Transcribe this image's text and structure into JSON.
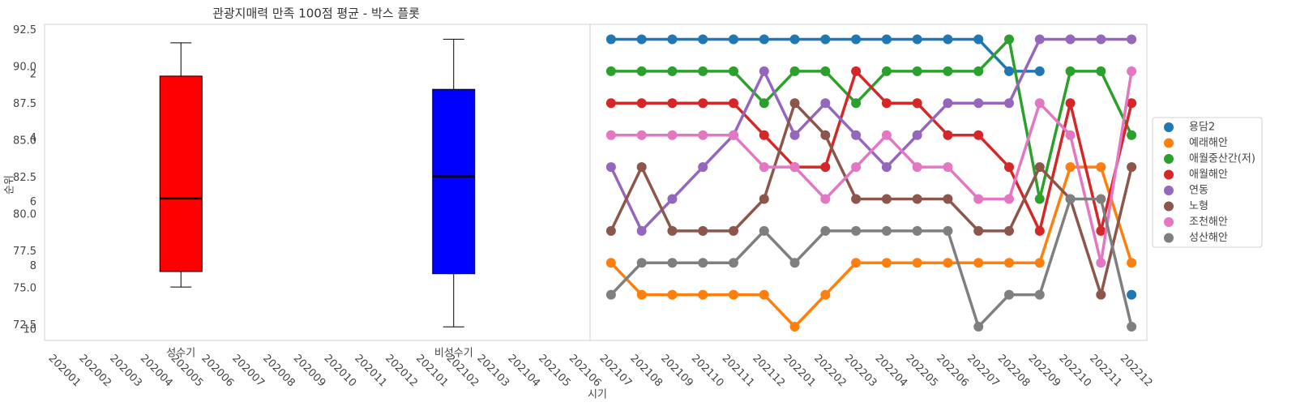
{
  "chart_data": [
    {
      "type": "box",
      "title": "관광지매력 만족 100점 평균 - 박스 플롯",
      "categories": [
        "성수기",
        "비성수기"
      ],
      "boxes": [
        {
          "whislo": 75.1,
          "q1": 76.15,
          "med": 81.1,
          "q3": 89.4,
          "whishi": 91.65,
          "color": "#ff0000"
        },
        {
          "whislo": 72.4,
          "q1": 76.0,
          "med": 82.6,
          "q3": 88.5,
          "whishi": 91.9,
          "color": "#0000ff"
        }
      ],
      "ylim": [
        71.48,
        92.91
      ],
      "yticks": [
        {
          "value": 72.5,
          "label": "72.5"
        },
        {
          "value": 75,
          "label": "75.0"
        },
        {
          "value": 77.5,
          "label": "77.5"
        },
        {
          "value": 80,
          "label": "80.0"
        },
        {
          "value": 82.5,
          "label": "82.5"
        },
        {
          "value": 85,
          "label": "85.0"
        },
        {
          "value": 87.5,
          "label": "87.5"
        },
        {
          "value": 90,
          "label": "90.0"
        },
        {
          "value": 92.5,
          "label": "92.5"
        }
      ]
    },
    {
      "type": "line",
      "xlabel": "시기",
      "ylabel": "순위",
      "categories": [
        "202001",
        "202002",
        "202003",
        "202004",
        "202005",
        "202006",
        "202007",
        "202008",
        "202009",
        "202010",
        "202011",
        "202012",
        "202101",
        "202102",
        "202103",
        "202104",
        "202105",
        "202106",
        "202107",
        "202108",
        "202109",
        "202110",
        "202111",
        "202112",
        "202201",
        "202202",
        "202203",
        "202204",
        "202205",
        "202206",
        "202207",
        "202208",
        "202209",
        "202210",
        "202211",
        "202212"
      ],
      "ylim": [
        10.43,
        0.53
      ],
      "yticks": [
        2,
        4,
        6,
        8,
        10
      ],
      "legend": "right",
      "series": [
        {
          "name": "용담2",
          "color": "#1f77b4",
          "values": [
            null,
            null,
            null,
            null,
            null,
            null,
            null,
            null,
            null,
            null,
            null,
            null,
            null,
            null,
            null,
            null,
            null,
            null,
            1,
            1,
            1,
            1,
            1,
            1,
            1,
            1,
            1,
            1,
            1,
            1,
            1,
            2,
            2,
            null,
            null,
            9
          ]
        },
        {
          "name": "예래해안",
          "color": "#ff7f0e",
          "values": [
            null,
            null,
            null,
            null,
            null,
            null,
            null,
            null,
            null,
            null,
            null,
            null,
            null,
            null,
            null,
            null,
            null,
            null,
            8,
            9,
            9,
            9,
            9,
            9,
            10,
            9,
            8,
            8,
            8,
            8,
            8,
            8,
            8,
            5,
            5,
            8
          ]
        },
        {
          "name": "애월중산간(저)",
          "color": "#2ca02c",
          "values": [
            null,
            null,
            null,
            null,
            null,
            null,
            null,
            null,
            null,
            null,
            null,
            null,
            null,
            null,
            null,
            null,
            null,
            null,
            2,
            2,
            2,
            2,
            2,
            3,
            2,
            2,
            3,
            2,
            2,
            2,
            2,
            1,
            6,
            2,
            2,
            4
          ]
        },
        {
          "name": "애월해안",
          "color": "#d62728",
          "values": [
            null,
            null,
            null,
            null,
            null,
            null,
            null,
            null,
            null,
            null,
            null,
            null,
            null,
            null,
            null,
            null,
            null,
            null,
            3,
            3,
            3,
            3,
            3,
            4,
            5,
            5,
            2,
            3,
            3,
            4,
            4,
            5,
            7,
            3,
            7,
            3
          ]
        },
        {
          "name": "연동",
          "color": "#9467bd",
          "values": [
            null,
            null,
            null,
            null,
            null,
            null,
            null,
            null,
            null,
            null,
            null,
            null,
            null,
            null,
            null,
            null,
            null,
            null,
            5,
            7,
            6,
            5,
            4,
            2,
            4,
            3,
            4,
            5,
            4,
            3,
            3,
            3,
            1,
            1,
            1,
            1
          ]
        },
        {
          "name": "노형",
          "color": "#8c564b",
          "values": [
            null,
            null,
            null,
            null,
            null,
            null,
            null,
            null,
            null,
            null,
            null,
            null,
            null,
            null,
            null,
            null,
            null,
            null,
            7,
            5,
            7,
            7,
            7,
            6,
            3,
            4,
            6,
            6,
            6,
            6,
            7,
            7,
            5,
            6,
            9,
            5
          ]
        },
        {
          "name": "조천해안",
          "color": "#e377c2",
          "values": [
            null,
            null,
            null,
            null,
            null,
            null,
            null,
            null,
            null,
            null,
            null,
            null,
            null,
            null,
            null,
            null,
            null,
            null,
            4,
            4,
            4,
            4,
            4,
            5,
            5,
            6,
            5,
            4,
            5,
            5,
            6,
            6,
            3,
            4,
            8,
            2
          ]
        },
        {
          "name": "성산해안",
          "color": "#7f7f7f",
          "values": [
            null,
            null,
            null,
            null,
            null,
            null,
            null,
            null,
            null,
            null,
            null,
            null,
            null,
            null,
            null,
            null,
            null,
            null,
            9,
            8,
            8,
            8,
            8,
            7,
            8,
            7,
            7,
            7,
            7,
            7,
            10,
            9,
            9,
            6,
            6,
            10
          ]
        }
      ]
    }
  ]
}
